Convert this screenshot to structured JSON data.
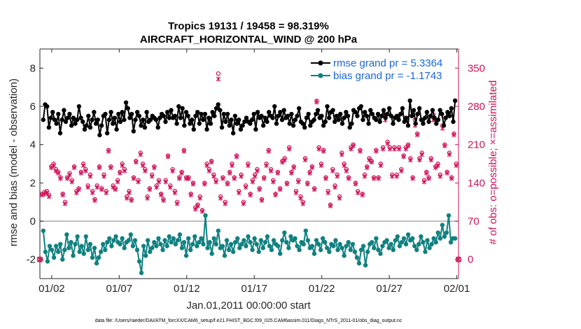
{
  "chart_data": {
    "type": "line",
    "title_line1": "Tropics 19131 / 19458 = 98.319%",
    "title_line2": "AIRCRAFT_HORIZONTAL_WIND @ 200 hPa",
    "xlabel": "Jan.01,2011 00:00:00 start",
    "ylabel_left": "rmse and bias (model - observation)",
    "ylabel_right": "# of obs: o=possible; ×=assimilated",
    "footer": "data file: /Users/raeder/DAI/ATM_forcXX/CAM6_setup/f.e21.FHIST_BGC.f09_025.CAM6assim.011/Diags_NTrS_2011-01/obs_diag_output.nc",
    "x_ticks": [
      {
        "value": 1.5,
        "label": "01/02"
      },
      {
        "value": 6.5,
        "label": "01/07"
      },
      {
        "value": 11.5,
        "label": "01/12"
      },
      {
        "value": 16.5,
        "label": "01/17"
      },
      {
        "value": 21.5,
        "label": "01/22"
      },
      {
        "value": 26.5,
        "label": "01/27"
      },
      {
        "value": 31.5,
        "label": "02/01"
      }
    ],
    "y_left_ticks": [
      -2,
      0,
      2,
      4,
      6,
      8
    ],
    "y_right_ticks": [
      0,
      70,
      140,
      210,
      280,
      350
    ],
    "xlim": [
      0.625,
      31.625
    ],
    "ylim_left": [
      -3,
      9
    ],
    "ylim_right": [
      -35,
      385
    ],
    "zero_line": 0,
    "legend": [
      {
        "label": "rmse grand pr = 5.3364",
        "color": "#000000"
      },
      {
        "label": "bias grand pr = -1.1743",
        "color": "#108080"
      }
    ],
    "colors": {
      "rmse": "#000000",
      "bias": "#108080",
      "obs": "#d0135a",
      "zero_line": "#bfbfbf",
      "legend_text": "#1a66e0"
    },
    "rmse": [
      5.3,
      6.1,
      6.0,
      4.9,
      5.4,
      5.7,
      5.3,
      5.1,
      5.6,
      4.6,
      5.3,
      5.8,
      5.2,
      5.4,
      5.6,
      5.0,
      5.4,
      5.1,
      5.3,
      6.0,
      5.4,
      5.2,
      4.8,
      5.0,
      5.5,
      4.9,
      5.3,
      5.7,
      5.1,
      5.3,
      4.5,
      5.0,
      5.5,
      5.6,
      4.6,
      5.3,
      5.7,
      5.1,
      5.4,
      4.8,
      5.6,
      5.2,
      5.7,
      5.3,
      6.2,
      5.9,
      5.4,
      5.6,
      4.7,
      5.3,
      5.7,
      5.5,
      5.0,
      5.3,
      4.9,
      5.7,
      5.2,
      5.3,
      5.5,
      5.4,
      5.3,
      4.9,
      5.4,
      5.6,
      5.5,
      5.2,
      5.7,
      5.4,
      5.8,
      5.4,
      5.5,
      5.1,
      6.0,
      5.4,
      5.9,
      5.0,
      5.7,
      5.5,
      5.1,
      5.3,
      4.8,
      5.5,
      5.7,
      5.1,
      5.6,
      5.3,
      5.6,
      4.8,
      5.4,
      5.1,
      5.7,
      5.5,
      5.9,
      6.1,
      5.8,
      4.9,
      5.6,
      5.2,
      5.6,
      5.0,
      5.3,
      4.6,
      5.5,
      5.1,
      5.3,
      4.8,
      5.0,
      5.2,
      5.4,
      5.2,
      5.1,
      5.3,
      5.6,
      4.8,
      5.7,
      5.4,
      5.5,
      5.0,
      5.4,
      5.2,
      5.7,
      5.5,
      5.4,
      6.0,
      5.1,
      5.5,
      5.7,
      5.3,
      5.8,
      5.4,
      5.5,
      5.1,
      5.6,
      5.0,
      5.3,
      5.5,
      5.9,
      5.2,
      5.1,
      4.9,
      5.4,
      5.6,
      5.0,
      5.2,
      5.3,
      5.6,
      5.8,
      5.4,
      5.5,
      5.0,
      5.2,
      6.0,
      5.4,
      5.7,
      5.8,
      5.2,
      5.5,
      5.3,
      5.6,
      5.1,
      5.4,
      5.7,
      5.5,
      4.9,
      5.1,
      5.8,
      5.7,
      5.5,
      5.9,
      6.0,
      5.3,
      5.7,
      5.5,
      5.1,
      5.8,
      5.6,
      5.4,
      5.3,
      5.6,
      5.2,
      5.5,
      5.8,
      5.4,
      5.6,
      5.9,
      5.5,
      5.1,
      5.4,
      5.5,
      5.3,
      5.6,
      5.9,
      5.2,
      5.4,
      5.0,
      6.3,
      5.5,
      5.8,
      5.1,
      5.6,
      5.9,
      5.3,
      5.1,
      5.4,
      5.7,
      5.2,
      5.5,
      5.8,
      5.4,
      5.1,
      5.3,
      5.8,
      5.6,
      5.0,
      5.4,
      5.7,
      5.5,
      5.9,
      5.2,
      6.3
    ],
    "bias": [
      -0.5,
      -1.6,
      -2.1,
      -1.3,
      -1.5,
      -1.9,
      -1.3,
      -1.6,
      -1.2,
      -2.0,
      -1.5,
      -0.7,
      -1.4,
      -1.1,
      -1.8,
      -1.2,
      -0.8,
      -1.6,
      -1.3,
      -1.7,
      -0.8,
      -1.5,
      -1.2,
      -1.9,
      -1.4,
      -2.2,
      -1.9,
      -1.6,
      -1.2,
      -1.5,
      -1.1,
      -0.9,
      -1.3,
      -1.0,
      -0.8,
      -1.1,
      -1.2,
      -0.9,
      -1.4,
      -1.1,
      -1.0,
      -0.7,
      -1.3,
      -1.0,
      -1.5,
      -2.1,
      -2.7,
      -1.3,
      -1.8,
      -1.0,
      -1.6,
      -1.4,
      -1.1,
      -1.3,
      -0.9,
      -1.2,
      -1.5,
      -1.0,
      -1.3,
      -0.8,
      -1.1,
      -0.9,
      -1.2,
      -1.0,
      -0.7,
      -1.4,
      -1.1,
      -1.8,
      -0.9,
      -1.5,
      -1.2,
      -0.8,
      -1.3,
      -1.1,
      -0.9,
      -1.2,
      0.3,
      -1.4,
      -1.1,
      -1.7,
      -0.9,
      -1.2,
      -0.5,
      -1.4,
      -1.3,
      -1.8,
      -1.0,
      -1.5,
      -1.2,
      -1.6,
      -1.1,
      -0.9,
      -1.4,
      -1.2,
      -1.0,
      -1.3,
      -0.8,
      -1.1,
      -1.5,
      -0.9,
      -1.2,
      -1.6,
      -1.0,
      -1.4,
      -1.1,
      -0.8,
      -1.3,
      -1.5,
      -1.0,
      -1.2,
      -1.3,
      -1.7,
      -1.0,
      -0.6,
      -1.1,
      -1.4,
      -0.8,
      -1.0,
      -0.9,
      -1.3,
      -1.5,
      -1.1,
      -1.2,
      -0.5,
      -1.0,
      -1.4,
      -1.3,
      -1.7,
      -1.0,
      -1.2,
      -1.5,
      -0.9,
      -1.1,
      -1.4,
      -1.6,
      -1.2,
      -1.3,
      -1.0,
      -1.5,
      -1.2,
      -1.4,
      -1.8,
      -1.3,
      -1.1,
      -1.5,
      -1.2,
      -1.6,
      -1.9,
      -2.2,
      -1.5,
      -1.3,
      -2.3,
      -1.6,
      -1.2,
      -1.1,
      -1.4,
      -0.9,
      -1.5,
      -1.7,
      -1.3,
      -1.1,
      -1.0,
      -1.4,
      -1.2,
      -1.5,
      -1.0,
      -0.8,
      -1.3,
      -1.1,
      -0.9,
      -1.2,
      -0.7,
      -1.0,
      -0.9,
      -1.3,
      -1.5,
      -1.2,
      -0.8,
      -1.1,
      -1.6,
      -1.0,
      -1.4,
      -1.2,
      -0.9,
      -1.1,
      -0.6,
      -0.9,
      -0.2,
      -0.8,
      -0.6,
      0.3,
      -1.1,
      -0.9,
      -0.9
    ],
    "obs_possible": [
      120,
      123,
      125,
      118,
      170,
      175,
      165,
      160,
      150,
      120,
      105,
      150,
      158,
      145,
      170,
      125,
      130,
      160,
      175,
      165,
      135,
      155,
      125,
      110,
      135,
      170,
      130,
      155,
      125,
      200,
      170,
      135,
      130,
      145,
      160,
      175,
      165,
      115,
      125,
      110,
      150,
      180,
      145,
      195,
      175,
      165,
      115,
      130,
      155,
      170,
      135,
      145,
      120,
      110,
      145,
      190,
      135,
      165,
      125,
      105,
      150,
      160,
      200,
      150,
      150,
      120,
      140,
      95,
      100,
      115,
      90,
      140,
      175,
      165,
      180,
      155,
      145,
      340,
      115,
      150,
      105,
      140,
      160,
      175,
      150,
      190,
      125,
      155,
      105,
      135,
      175,
      120,
      145,
      155,
      165,
      130,
      110,
      150,
      175,
      200,
      165,
      145,
      120,
      160,
      130,
      180,
      185,
      140,
      205,
      160,
      170,
      125,
      145,
      115,
      105,
      185,
      140,
      160,
      170,
      130,
      290,
      205,
      175,
      200,
      150,
      125,
      100,
      165,
      135,
      155,
      115,
      195,
      175,
      165,
      150,
      205,
      210,
      140,
      125,
      200,
      120,
      155,
      170,
      185,
      180,
      150,
      200,
      150,
      175,
      205,
      265,
      215,
      205,
      155,
      205,
      155,
      205,
      165,
      190,
      205,
      210,
      185,
      150,
      255,
      230,
      185,
      195,
      145,
      160,
      150,
      185,
      265,
      170,
      175,
      155,
      245,
      210,
      160,
      195,
      150,
      230,
      175
    ],
    "obs_assimilated": [
      118,
      120,
      122,
      115,
      168,
      172,
      162,
      158,
      148,
      118,
      102,
      148,
      155,
      142,
      168,
      122,
      128,
      158,
      172,
      162,
      132,
      152,
      122,
      108,
      132,
      168,
      128,
      152,
      122,
      198,
      168,
      132,
      128,
      142,
      158,
      172,
      162,
      112,
      122,
      108,
      148,
      178,
      142,
      192,
      172,
      162,
      112,
      128,
      152,
      168,
      132,
      142,
      118,
      108,
      142,
      188,
      132,
      162,
      122,
      102,
      148,
      158,
      198,
      148,
      148,
      118,
      138,
      92,
      98,
      112,
      88,
      138,
      172,
      162,
      178,
      152,
      142,
      330,
      112,
      148,
      102,
      138,
      158,
      172,
      148,
      188,
      122,
      152,
      102,
      132,
      172,
      118,
      142,
      152,
      162,
      128,
      108,
      148,
      172,
      198,
      162,
      142,
      118,
      158,
      128,
      178,
      182,
      138,
      202,
      158,
      168,
      122,
      142,
      112,
      102,
      182,
      138,
      158,
      168,
      128,
      288,
      202,
      172,
      198,
      148,
      122,
      98,
      162,
      132,
      152,
      112,
      192,
      172,
      162,
      148,
      202,
      208,
      138,
      122,
      198,
      118,
      152,
      168,
      182,
      178,
      148,
      198,
      148,
      172,
      202,
      255,
      212,
      202,
      152,
      202,
      152,
      202,
      162,
      188,
      202,
      208,
      182,
      148,
      245,
      228,
      182,
      192,
      142,
      158,
      148,
      182,
      255,
      168,
      172,
      152,
      240,
      208,
      158,
      192,
      148,
      228,
      172
    ]
  }
}
